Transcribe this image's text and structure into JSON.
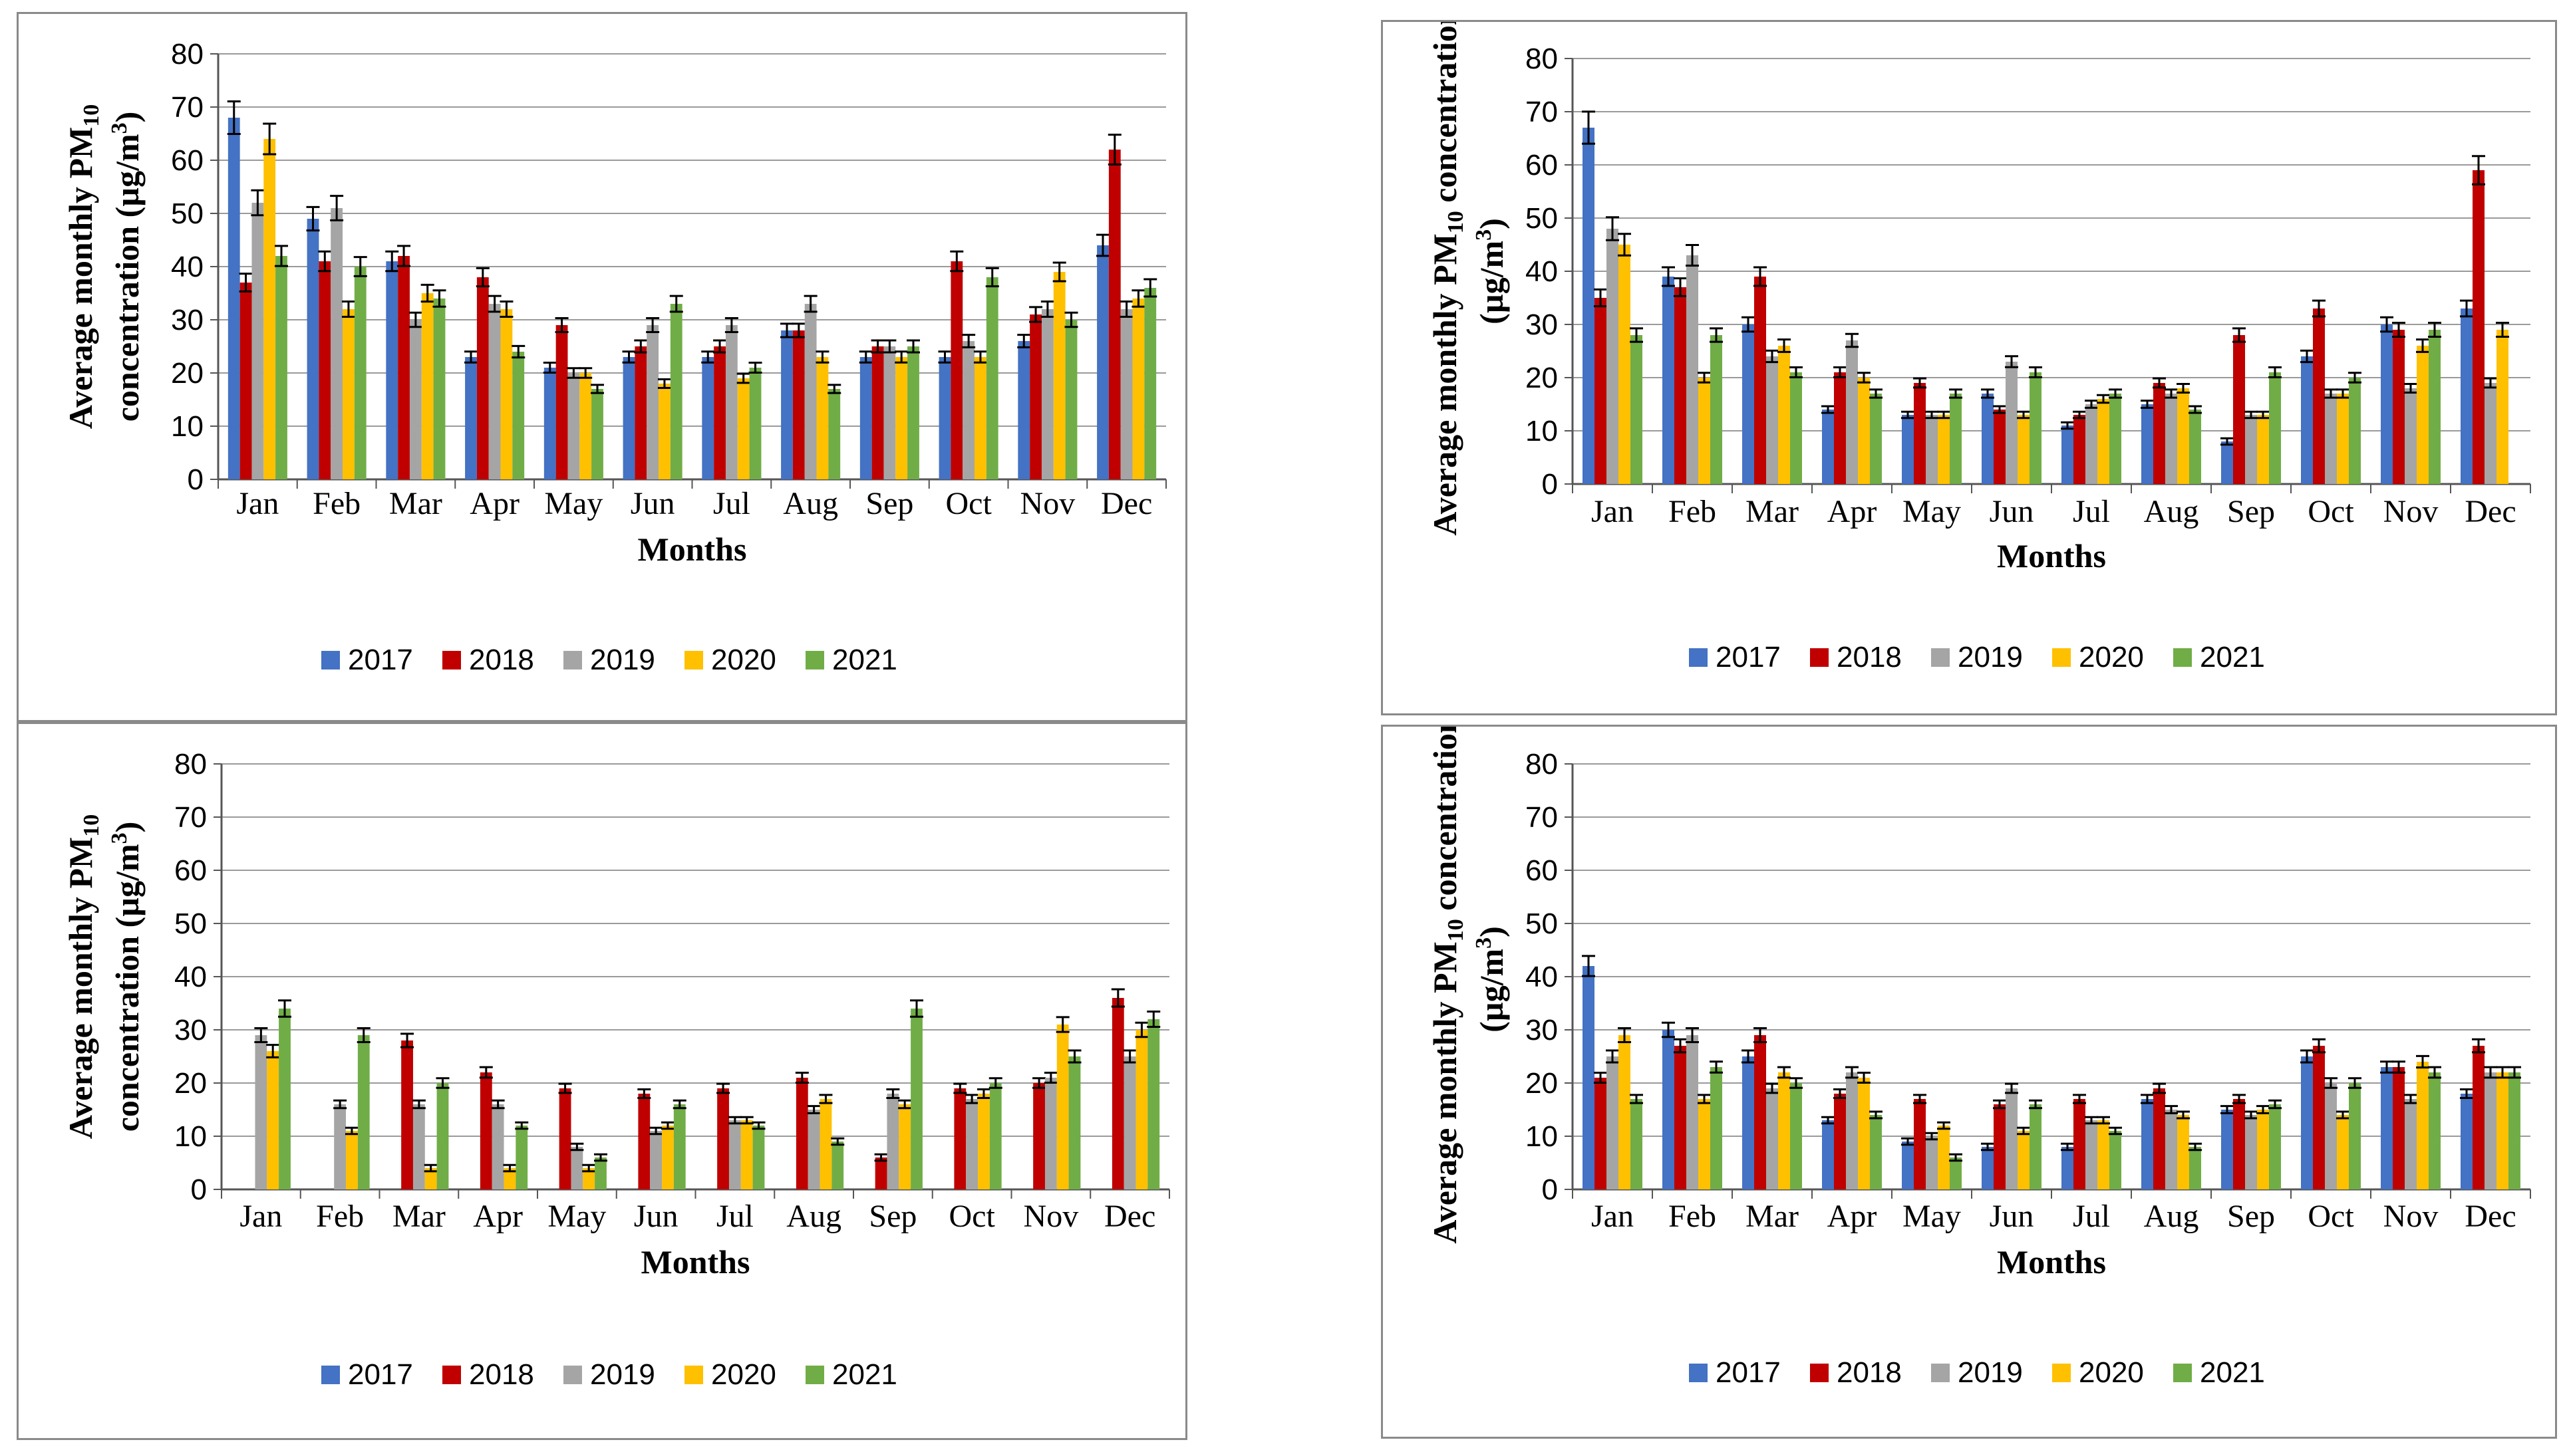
{
  "legend": [
    "2017",
    "2018",
    "2019",
    "2020",
    "2021"
  ],
  "colors": [
    "#4472C4",
    "#C00000",
    "#A5A5A5",
    "#FFC000",
    "#70AD47"
  ],
  "chart_data": [
    {
      "type": "bar",
      "title": "",
      "ylabel_line1": "Average monthly PM",
      "ylabel_sub": "10",
      "ylabel_line2": "concentration (µg/m",
      "ylabel_sup": "3",
      "ylabel_end": ")",
      "xlabel": "Months",
      "ylim": [
        0,
        80
      ],
      "yticks": [
        0,
        10,
        20,
        30,
        40,
        50,
        60,
        70,
        80
      ],
      "categories": [
        "Jan",
        "Feb",
        "Mar",
        "Apr",
        "May",
        "Jun",
        "Jul",
        "Aug",
        "Sep",
        "Oct",
        "Nov",
        "Dec"
      ],
      "series": [
        {
          "name": "2017",
          "values": [
            68,
            49,
            41,
            23,
            21,
            23,
            23,
            28,
            23,
            23,
            26,
            44
          ]
        },
        {
          "name": "2018",
          "values": [
            37,
            41,
            42,
            38,
            29,
            25,
            25,
            28,
            25,
            41,
            31,
            62
          ]
        },
        {
          "name": "2019",
          "values": [
            52,
            51,
            30,
            33,
            20,
            29,
            29,
            33,
            25,
            26,
            32,
            32
          ]
        },
        {
          "name": "2020",
          "values": [
            64,
            32,
            35,
            32,
            20,
            18,
            19,
            23,
            23,
            23,
            39,
            34
          ]
        },
        {
          "name": "2021",
          "values": [
            42,
            40,
            34,
            24,
            17,
            33,
            21,
            17,
            25,
            38,
            30,
            36
          ]
        }
      ]
    },
    {
      "type": "bar",
      "title": "",
      "ylabel_line1": "Average monthly PM",
      "ylabel_sub": "10",
      "ylabel_line1b": " concentration",
      "ylabel_line2": "(µg/m",
      "ylabel_sup": "3",
      "ylabel_end": ")",
      "xlabel": "Months",
      "ylim": [
        0,
        80
      ],
      "yticks": [
        0,
        10,
        20,
        30,
        40,
        50,
        60,
        70,
        80
      ],
      "categories": [
        "Jan",
        "Feb",
        "Mar",
        "Apr",
        "May",
        "Jun",
        "Jul",
        "Aug",
        "Sep",
        "Oct",
        "Nov",
        "Dec"
      ],
      "series": [
        {
          "name": "2017",
          "values": [
            67,
            39,
            30,
            14,
            13,
            17,
            11,
            15,
            8,
            24,
            30,
            33
          ]
        },
        {
          "name": "2018",
          "values": [
            35,
            37,
            39,
            21,
            19,
            14,
            13,
            19,
            28,
            33,
            29,
            59
          ]
        },
        {
          "name": "2019",
          "values": [
            48,
            43,
            24,
            27,
            13,
            23,
            15,
            17,
            13,
            17,
            18,
            19
          ]
        },
        {
          "name": "2020",
          "values": [
            45,
            20,
            26,
            20,
            13,
            13,
            16,
            18,
            13,
            17,
            26,
            29
          ]
        },
        {
          "name": "2021",
          "values": [
            28,
            28,
            21,
            17,
            17,
            21,
            17,
            14,
            21,
            20,
            29,
            null
          ]
        }
      ]
    },
    {
      "type": "bar",
      "title": "",
      "ylabel_line1": "Average monthly PM",
      "ylabel_sub": "10",
      "ylabel_line2": "concentration (µg/m",
      "ylabel_sup": "3",
      "ylabel_end": ")",
      "xlabel": "Months",
      "ylim": [
        0,
        80
      ],
      "yticks": [
        0,
        10,
        20,
        30,
        40,
        50,
        60,
        70,
        80
      ],
      "categories": [
        "Jan",
        "Feb",
        "Mar",
        "Apr",
        "May",
        "Jun",
        "Jul",
        "Aug",
        "Sep",
        "Oct",
        "Nov",
        "Dec"
      ],
      "series": [
        {
          "name": "2017",
          "values": [
            null,
            null,
            null,
            null,
            null,
            null,
            null,
            null,
            null,
            null,
            null,
            null
          ]
        },
        {
          "name": "2018",
          "values": [
            null,
            null,
            28,
            22,
            19,
            18,
            19,
            21,
            6,
            19,
            20,
            36
          ]
        },
        {
          "name": "2019",
          "values": [
            29,
            16,
            16,
            16,
            8,
            11,
            13,
            15,
            18,
            17,
            21,
            25
          ]
        },
        {
          "name": "2020",
          "values": [
            26,
            11,
            4,
            4,
            4,
            12,
            13,
            17,
            16,
            18,
            31,
            30
          ]
        },
        {
          "name": "2021",
          "values": [
            34,
            29,
            20,
            12,
            6,
            16,
            12,
            9,
            34,
            20,
            25,
            32
          ]
        }
      ]
    },
    {
      "type": "bar",
      "title": "",
      "ylabel_line1": "Average monthly PM",
      "ylabel_sub": "10",
      "ylabel_line1b": " concentration",
      "ylabel_line2": "(µg/m",
      "ylabel_sup": "3",
      "ylabel_end": ")",
      "xlabel": "Months",
      "ylim": [
        0,
        80
      ],
      "yticks": [
        0,
        10,
        20,
        30,
        40,
        50,
        60,
        70,
        80
      ],
      "categories": [
        "Jan",
        "Feb",
        "Mar",
        "Apr",
        "May",
        "Jun",
        "Jul",
        "Aug",
        "Sep",
        "Oct",
        "Nov",
        "Dec"
      ],
      "series": [
        {
          "name": "2017",
          "values": [
            42,
            30,
            25,
            13,
            9,
            8,
            8,
            17,
            15,
            25,
            23,
            18
          ]
        },
        {
          "name": "2018",
          "values": [
            21,
            27,
            29,
            18,
            17,
            16,
            17,
            19,
            17,
            27,
            23,
            27
          ]
        },
        {
          "name": "2019",
          "values": [
            25,
            29,
            19,
            22,
            10,
            19,
            13,
            15,
            14,
            20,
            17,
            22
          ]
        },
        {
          "name": "2020",
          "values": [
            29,
            17,
            22,
            21,
            12,
            11,
            13,
            14,
            15,
            14,
            24,
            22
          ]
        },
        {
          "name": "2021",
          "values": [
            17,
            23,
            20,
            14,
            6,
            16,
            11,
            8,
            16,
            20,
            22,
            22
          ]
        }
      ]
    }
  ]
}
